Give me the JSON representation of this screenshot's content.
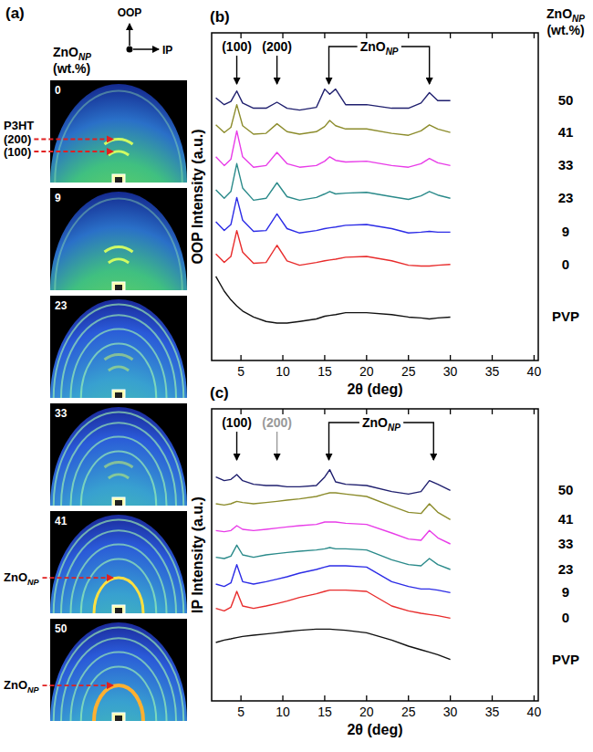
{
  "chart_data": [
    {
      "type": "image",
      "title": "(a)",
      "header": {
        "text": "ZnO",
        "sub": "NP",
        "unit": "(wt.%)"
      },
      "axes": {
        "vertical": "OOP",
        "horizontal": "IP"
      },
      "panels": [
        {
          "label": "0",
          "annotations": [
            {
              "lines": [
                "P3HT",
                "(200)"
              ]
            },
            {
              "lines": [
                "(100)"
              ]
            }
          ]
        },
        {
          "label": "9",
          "annotations": []
        },
        {
          "label": "23",
          "annotations": []
        },
        {
          "label": "33",
          "annotations": []
        },
        {
          "label": "41",
          "annotations": [
            {
              "text": "ZnO",
              "sub": "NP"
            }
          ]
        },
        {
          "label": "50",
          "annotations": [
            {
              "text": "ZnO",
              "sub": "NP"
            }
          ]
        }
      ]
    },
    {
      "type": "line",
      "title": "(b)",
      "y_label": "OOP Intensity (a.u.)",
      "x_label": "2θ (deg)",
      "label_title": {
        "text": "ZnO",
        "sub": "NP",
        "unit": "(wt.%)"
      },
      "x": [
        2,
        3,
        3.8,
        4.5,
        5.2,
        6.5,
        8,
        9.3,
        10.5,
        12,
        14,
        15,
        15.6,
        16.3,
        17.5,
        20,
        23,
        25,
        26.5,
        27.5,
        28.5,
        30
      ],
      "xlim": [
        1.5,
        40.5
      ],
      "xticks": [
        5,
        10,
        15,
        20,
        25,
        30,
        35,
        40
      ],
      "ylim": [
        0,
        120
      ],
      "tick_labels": "x",
      "annotations": [
        {
          "text": "(100)",
          "x": 4.5
        },
        {
          "text": "(200)",
          "x": 9.3
        },
        {
          "text": "ZnO",
          "sub": "NP",
          "x": [
            15.5,
            27.5
          ]
        }
      ],
      "series": [
        {
          "name": "50",
          "color": "#1f1f6e",
          "values": [
            96.2,
            93.7,
            94.9,
            98.7,
            94.3,
            92.4,
            92.4,
            94.6,
            92.4,
            91.7,
            92.7,
            99.4,
            97.5,
            99.4,
            93.7,
            93.7,
            92.4,
            92.4,
            94.3,
            98.1,
            95.2,
            95.2
          ]
        },
        {
          "name": "41",
          "color": "#8c8c2c",
          "values": [
            86.3,
            83.5,
            85.4,
            93.7,
            86.0,
            82.9,
            83.2,
            86.7,
            83.8,
            82.9,
            83.8,
            85.7,
            87.9,
            86.0,
            84.8,
            84.8,
            83.2,
            82.5,
            84.1,
            86.3,
            84.8,
            83.5
          ]
        },
        {
          "name": "33",
          "color": "#e83ce8",
          "values": [
            74.6,
            71.4,
            73.7,
            84.1,
            74.6,
            70.8,
            71.4,
            76.2,
            72.1,
            70.8,
            71.4,
            73.0,
            74.6,
            73.3,
            72.7,
            73.0,
            71.4,
            70.8,
            72.1,
            74.0,
            72.4,
            71.4
          ]
        },
        {
          "name": "23",
          "color": "#2a8a8a",
          "values": [
            62.5,
            59.4,
            61.9,
            72.1,
            63.2,
            58.7,
            59.4,
            65.1,
            60.0,
            58.7,
            59.7,
            61.0,
            61.9,
            61.0,
            61.3,
            61.6,
            60.0,
            59.0,
            60.3,
            61.9,
            60.6,
            59.4
          ]
        },
        {
          "name": "9",
          "color": "#2c2ce6",
          "values": [
            50.8,
            47.6,
            49.8,
            59.7,
            51.4,
            47.3,
            47.6,
            53.7,
            48.3,
            46.7,
            47.6,
            48.3,
            48.6,
            48.9,
            49.5,
            49.8,
            48.3,
            46.7,
            47.0,
            47.3,
            47.0,
            47.0
          ]
        },
        {
          "name": "0",
          "color": "#e82c2c",
          "values": [
            39.0,
            35.9,
            38.1,
            47.6,
            39.7,
            35.6,
            35.9,
            42.2,
            36.5,
            34.9,
            35.9,
            36.5,
            36.8,
            37.1,
            37.8,
            38.1,
            36.5,
            34.9,
            34.6,
            34.6,
            34.9,
            35.2
          ]
        },
        {
          "name": "PVP",
          "color": "#111111",
          "values": [
            30.8,
            25.4,
            22.2,
            20.0,
            18.1,
            15.9,
            14.3,
            13.7,
            13.7,
            14.3,
            15.2,
            16.2,
            16.5,
            16.8,
            17.5,
            17.5,
            16.8,
            15.9,
            15.6,
            15.2,
            15.6,
            15.9
          ]
        }
      ]
    },
    {
      "type": "line",
      "title": "(c)",
      "y_label": "IP Intensity (a.u.)",
      "x_label": "2θ (deg)",
      "x": [
        2,
        3,
        3.8,
        4.5,
        5.2,
        6.5,
        8,
        9.3,
        10.5,
        12,
        14,
        15,
        15.6,
        16.3,
        17.5,
        20,
        23,
        25,
        26.5,
        27.5,
        28.5,
        30
      ],
      "xlim": [
        1.5,
        40.5
      ],
      "xticks": [
        5,
        10,
        15,
        20,
        25,
        30,
        35,
        40
      ],
      "ylim": [
        0,
        120
      ],
      "tick_labels": "x",
      "annotations": [
        {
          "text": "(100)",
          "x": 4.5
        },
        {
          "text": "(200)",
          "x": 9.3,
          "color": "#999999"
        },
        {
          "text": "ZnO",
          "sub": "NP",
          "x": [
            15.5,
            28
          ]
        }
      ],
      "series": [
        {
          "name": "50",
          "color": "#1f1f6e",
          "values": [
            92,
            90.5,
            91,
            93,
            90.5,
            89,
            88.5,
            88.5,
            88,
            88,
            88.5,
            92,
            95,
            90,
            89,
            88.5,
            86,
            85,
            86,
            90.5,
            89,
            86.5
          ]
        },
        {
          "name": "41",
          "color": "#8c8c2c",
          "values": [
            81,
            80.5,
            81,
            82,
            81.5,
            81,
            81.5,
            82,
            82.5,
            83,
            84,
            85,
            85.5,
            85.5,
            85,
            84,
            80,
            77.5,
            77,
            81,
            77.5,
            74.5
          ]
        },
        {
          "name": "33",
          "color": "#e83ce8",
          "values": [
            70,
            69.5,
            70,
            72,
            70.5,
            70,
            70.5,
            71,
            71.5,
            72,
            72.5,
            73.5,
            73.5,
            73.5,
            73,
            72.5,
            69,
            66.5,
            66,
            70,
            67,
            64.5
          ]
        },
        {
          "name": "23",
          "color": "#2a8a8a",
          "values": [
            59,
            58.5,
            59.5,
            64,
            60,
            59,
            60,
            60.5,
            61,
            61.5,
            62,
            62.5,
            63,
            62.5,
            62.5,
            62,
            58,
            56,
            55.5,
            58.5,
            56,
            54
          ]
        },
        {
          "name": "9",
          "color": "#2c2ce6",
          "values": [
            48,
            47,
            48.5,
            56,
            49,
            48,
            49,
            50,
            51,
            52.5,
            54,
            55,
            55.5,
            55.5,
            55.5,
            55,
            49,
            47,
            46,
            46,
            45.5,
            44.5
          ]
        },
        {
          "name": "0",
          "color": "#e82c2c",
          "values": [
            38,
            37,
            38.5,
            45,
            39,
            38,
            39,
            40,
            41,
            42.5,
            44,
            45,
            45.5,
            45.5,
            45.5,
            45,
            39,
            37,
            36,
            35.5,
            35,
            34
          ]
        },
        {
          "name": "PVP",
          "color": "#111111",
          "values": [
            24,
            25,
            25.5,
            26,
            26.5,
            27,
            27.5,
            28,
            28.5,
            29,
            29.5,
            29.5,
            29.5,
            29.3,
            29,
            28,
            25,
            22.5,
            21,
            20,
            19,
            17
          ]
        }
      ]
    }
  ]
}
